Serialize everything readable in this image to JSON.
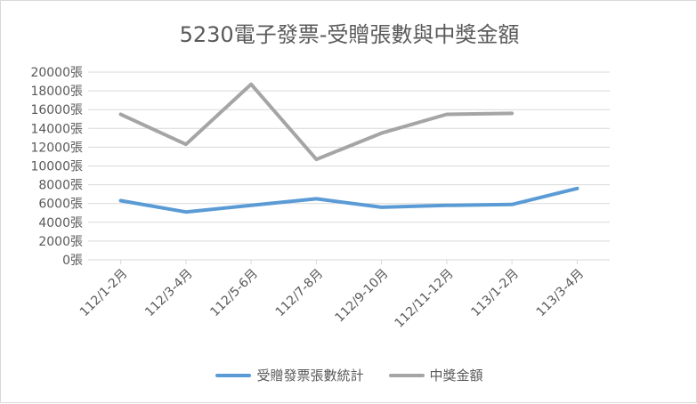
{
  "chart_data": {
    "type": "line",
    "title": "5230電子發票-受贈張數與中獎金額",
    "categories": [
      "112/1-2月",
      "112/3-4月",
      "112/5-6月",
      "112/7-8月",
      "112/9-10月",
      "112/11-12月",
      "113/1-2月",
      "113/3-4月"
    ],
    "y_tick_labels": [
      "0張",
      "2000張",
      "4000張",
      "6000張",
      "8000張",
      "10000張",
      "12000張",
      "14000張",
      "16000張",
      "18000張",
      "20000張"
    ],
    "ylim": [
      0,
      20000
    ],
    "grid": true,
    "legend_position": "bottom",
    "series": [
      {
        "name": "受贈發票張數統計",
        "color": "#5b9bd5",
        "values": [
          6300,
          5100,
          5800,
          6500,
          5600,
          5800,
          5900,
          7600
        ]
      },
      {
        "name": "中獎金額",
        "color": "#a5a5a5",
        "values": [
          15500,
          12300,
          18700,
          10700,
          13500,
          15500,
          15600,
          null
        ]
      }
    ]
  }
}
